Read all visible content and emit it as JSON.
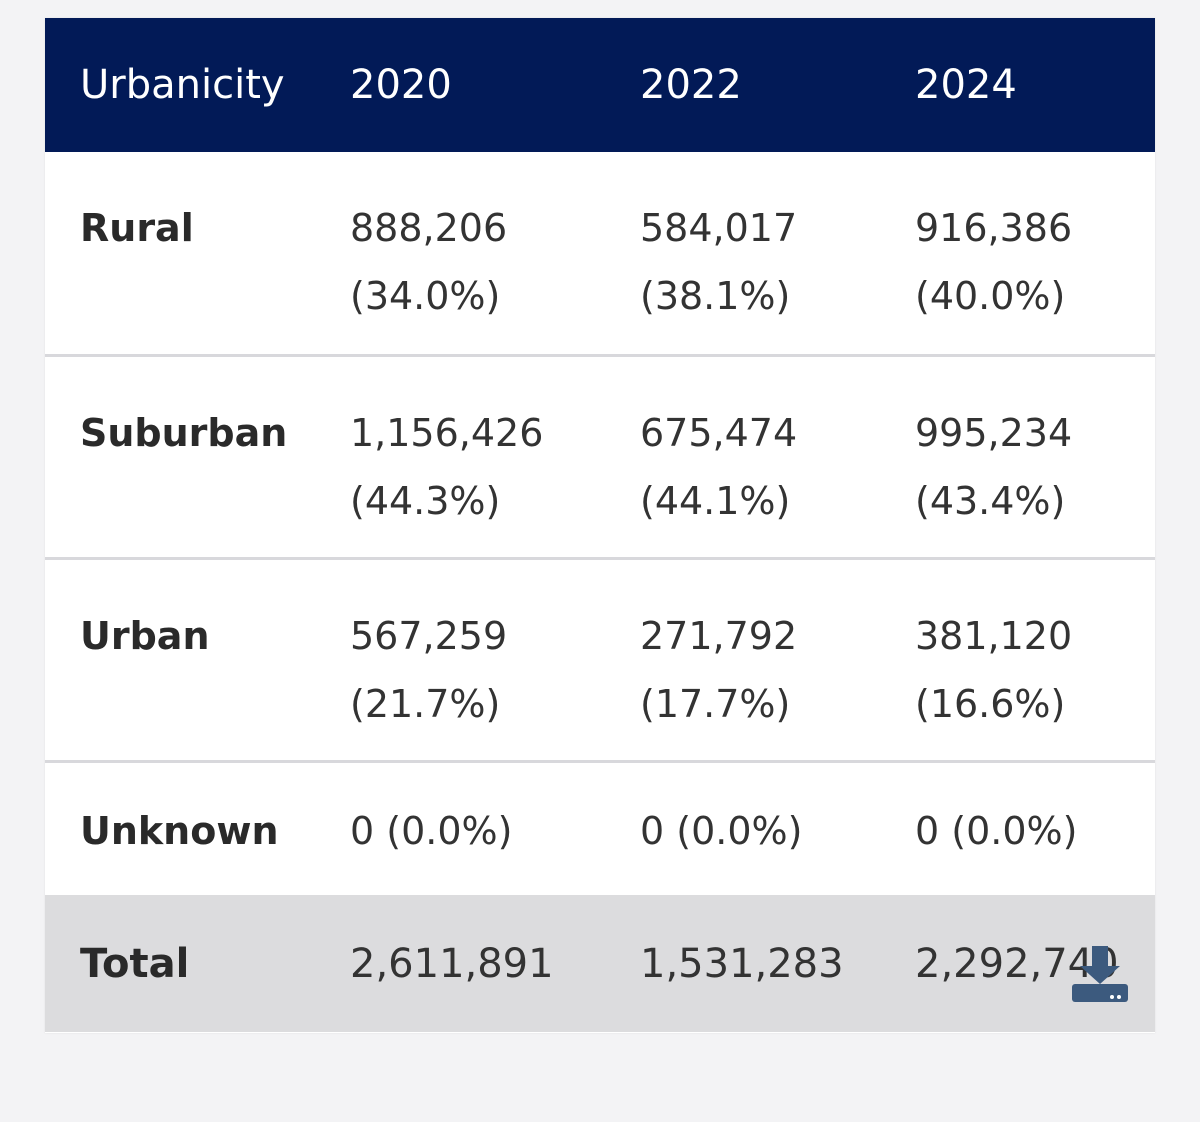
{
  "table": {
    "columns": [
      "Urbanicity",
      "2020",
      "2022",
      "2024"
    ],
    "rows": [
      {
        "label": "Rural",
        "cells": [
          {
            "value": "888,206",
            "pct": "(34.0%)"
          },
          {
            "value": "584,017",
            "pct": "(38.1%)"
          },
          {
            "value": "916,386",
            "pct": "(40.0%)"
          }
        ]
      },
      {
        "label": "Suburban",
        "cells": [
          {
            "value": "1,156,426",
            "pct": "(44.3%)"
          },
          {
            "value": "675,474",
            "pct": "(44.1%)"
          },
          {
            "value": "995,234",
            "pct": "(43.4%)"
          }
        ]
      },
      {
        "label": "Urban",
        "cells": [
          {
            "value": "567,259",
            "pct": "(21.7%)"
          },
          {
            "value": "271,792",
            "pct": "(17.7%)"
          },
          {
            "value": "381,120",
            "pct": "(16.6%)"
          }
        ]
      },
      {
        "label": "Unknown",
        "cells": [
          {
            "value": "0",
            "pct": "(0.0%)"
          },
          {
            "value": "0",
            "pct": "(0.0%)"
          },
          {
            "value": "0",
            "pct": "(0.0%)"
          }
        ]
      }
    ],
    "total": {
      "label": "Total",
      "values": [
        "2,611,891",
        "1,531,283",
        "2,292,740"
      ]
    }
  },
  "download": {
    "icon": "download-icon"
  },
  "colors": {
    "header_bg": "#021a57",
    "header_text": "#ffffff",
    "total_bg": "#dcdcde",
    "download_icon": "#3c5a7e"
  }
}
